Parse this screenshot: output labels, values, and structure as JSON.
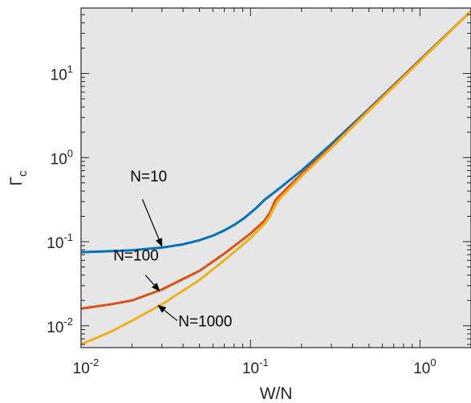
{
  "chart_data": {
    "type": "line",
    "xlabel": "W/N",
    "ylabel": "Γ",
    "ylabel_subscript": "c",
    "xscale": "log",
    "yscale": "log",
    "xlim": [
      0.01,
      2
    ],
    "ylim": [
      0.0055,
      60
    ],
    "x_ticks": [
      {
        "base": "10",
        "exp": "-2",
        "value": 0.01
      },
      {
        "base": "10",
        "exp": "-1",
        "value": 0.1
      },
      {
        "base": "10",
        "exp": "0",
        "value": 1
      }
    ],
    "y_ticks": [
      {
        "base": "10",
        "exp": "-2",
        "value": 0.01
      },
      {
        "base": "10",
        "exp": "-1",
        "value": 0.1
      },
      {
        "base": "10",
        "exp": "0",
        "value": 1
      },
      {
        "base": "10",
        "exp": "1",
        "value": 10
      }
    ],
    "background": "#e6e6e6",
    "grid": false,
    "series": [
      {
        "color": "#0072bd",
        "x": [
          0.01,
          0.015,
          0.02,
          0.03,
          0.04,
          0.05,
          0.06,
          0.07,
          0.08,
          0.09,
          0.1,
          0.11,
          0.12,
          0.15,
          0.2,
          0.3,
          0.5,
          1.0,
          2.0
        ],
        "y": [
          0.075,
          0.077,
          0.079,
          0.085,
          0.093,
          0.104,
          0.118,
          0.136,
          0.158,
          0.185,
          0.22,
          0.26,
          0.31,
          0.44,
          0.7,
          1.45,
          3.8,
          14.5,
          55
        ]
      },
      {
        "color": "#d95319",
        "x": [
          0.01,
          0.015,
          0.02,
          0.03,
          0.05,
          0.07,
          0.1,
          0.12,
          0.13,
          0.14,
          0.15,
          0.2,
          0.3,
          0.5,
          1.0,
          2.0
        ],
        "y": [
          0.016,
          0.018,
          0.02,
          0.027,
          0.045,
          0.072,
          0.125,
          0.175,
          0.22,
          0.31,
          0.36,
          0.64,
          1.35,
          3.7,
          14.3,
          55
        ]
      },
      {
        "color": "#edb120",
        "x": [
          0.01,
          0.015,
          0.02,
          0.03,
          0.05,
          0.07,
          0.1,
          0.12,
          0.13,
          0.14,
          0.15,
          0.2,
          0.3,
          0.5,
          1.0,
          2.0
        ],
        "y": [
          0.006,
          0.0085,
          0.0115,
          0.018,
          0.035,
          0.06,
          0.11,
          0.16,
          0.2,
          0.27,
          0.33,
          0.6,
          1.3,
          3.6,
          14.0,
          55
        ]
      }
    ],
    "annotations": [
      {
        "text": "N=10",
        "text_x": 0.0195,
        "text_y": 0.52,
        "arrow_from": [
          0.023,
          0.32
        ],
        "arrow_to": [
          0.03,
          0.088
        ]
      },
      {
        "text": "N=100",
        "text_x": 0.0155,
        "text_y": 0.06,
        "arrow_from": [
          0.024,
          0.04
        ],
        "arrow_to": [
          0.029,
          0.026
        ]
      },
      {
        "text": "N=1000",
        "text_x": 0.0375,
        "text_y": 0.0099,
        "arrow_from": [
          0.037,
          0.0115
        ],
        "arrow_to": [
          0.0285,
          0.0175
        ]
      }
    ]
  }
}
